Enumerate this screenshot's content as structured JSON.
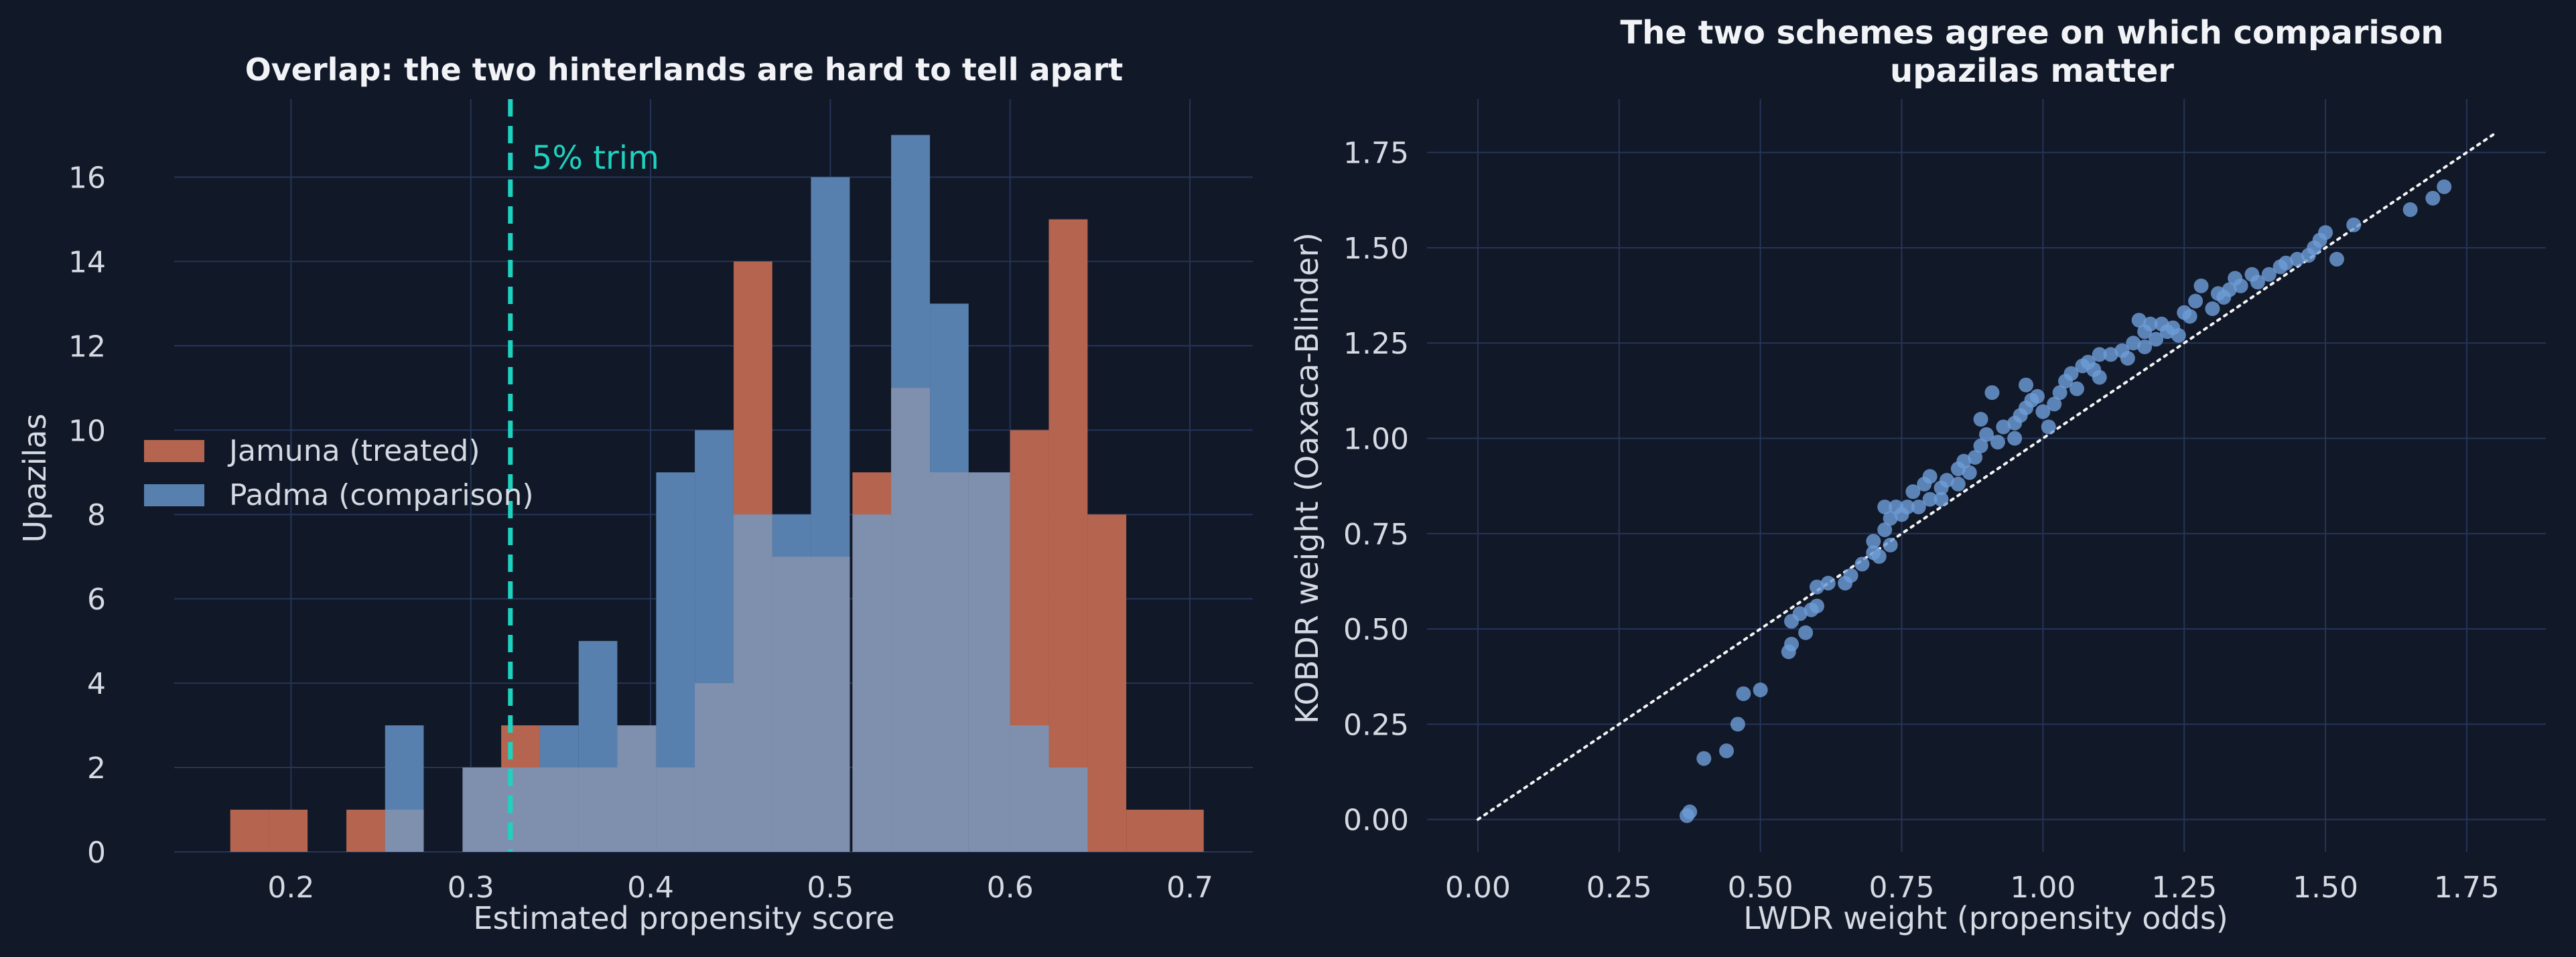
{
  "colors": {
    "background": "#111827",
    "grid": "#26345a",
    "text": "#d6dae3",
    "title": "#f1f3f7",
    "treated": "#b5654f",
    "comparison": "#5880ae",
    "overlap": "#7f90ae",
    "trim_line": "#1dd3c0",
    "scatter_point": "#6c9bd6",
    "identity_line": "#f3f4f6"
  },
  "chart_data": [
    {
      "type": "bar",
      "subtype": "overlaid-histogram",
      "title": "Overlap: the two hinterlands are hard to tell apart",
      "xlabel": "Estimated propensity score",
      "ylabel": "Upazilas",
      "xlim": [
        0.135,
        0.735
      ],
      "ylim": [
        0,
        17.85
      ],
      "xticks": [
        0.2,
        0.3,
        0.4,
        0.5,
        0.6,
        0.7
      ],
      "xtick_labels": [
        "0.2",
        "0.3",
        "0.4",
        "0.5",
        "0.6",
        "0.7"
      ],
      "yticks": [
        0,
        2,
        4,
        6,
        8,
        10,
        12,
        14,
        16
      ],
      "ytick_labels": [
        "0",
        "2",
        "4",
        "6",
        "8",
        "10",
        "12",
        "14",
        "16"
      ],
      "grid": true,
      "legend_position": "center-left",
      "series": [
        {
          "name": "Jamuna (treated)",
          "color_key": "treated",
          "bins": [
            [
              0.1662,
              0.1877,
              1
            ],
            [
              0.1877,
              0.2092,
              1
            ],
            [
              0.2308,
              0.2523,
              1
            ],
            [
              0.3169,
              0.3385,
              3
            ],
            [
              0.4031,
              0.4246,
              5
            ],
            [
              0.4462,
              0.4677,
              14
            ],
            [
              0.4892,
              0.5108,
              7
            ],
            [
              0.5123,
              0.5338,
              9
            ],
            [
              0.6,
              0.6215,
              10
            ],
            [
              0.6215,
              0.6431,
              15
            ],
            [
              0.6431,
              0.6646,
              8
            ],
            [
              0.6646,
              0.6862,
              1
            ],
            [
              0.6862,
              0.7077,
              1
            ]
          ]
        },
        {
          "name": "Padma (comparison)",
          "color_key": "comparison",
          "bins": [
            [
              0.2523,
              0.2738,
              3
            ],
            [
              0.3169,
              0.3385,
              2
            ],
            [
              0.3385,
              0.36,
              3
            ],
            [
              0.36,
              0.3815,
              5
            ],
            [
              0.4031,
              0.4246,
              9
            ],
            [
              0.4246,
              0.4462,
              10
            ],
            [
              0.4677,
              0.4892,
              8
            ],
            [
              0.4892,
              0.5108,
              16
            ],
            [
              0.5338,
              0.5554,
              17
            ],
            [
              0.5554,
              0.5769,
              13
            ],
            [
              0.6,
              0.6215,
              3
            ],
            [
              0.6215,
              0.6431,
              2
            ]
          ]
        },
        {
          "name": "",
          "color_key": "overlap",
          "bins": [
            [
              0.2523,
              0.2738,
              1
            ],
            [
              0.2954,
              0.3169,
              2
            ],
            [
              0.3169,
              0.3385,
              2
            ],
            [
              0.3385,
              0.36,
              2
            ],
            [
              0.36,
              0.3815,
              2
            ],
            [
              0.3815,
              0.4031,
              3
            ],
            [
              0.4031,
              0.4246,
              2
            ],
            [
              0.4246,
              0.4462,
              4
            ],
            [
              0.4462,
              0.4677,
              8
            ],
            [
              0.4677,
              0.4892,
              7
            ],
            [
              0.4892,
              0.5108,
              7
            ],
            [
              0.5123,
              0.5338,
              8
            ],
            [
              0.5338,
              0.5554,
              11
            ],
            [
              0.5554,
              0.5769,
              9
            ],
            [
              0.5769,
              0.6,
              9
            ],
            [
              0.6,
              0.6215,
              3
            ],
            [
              0.6215,
              0.6431,
              2
            ]
          ]
        }
      ],
      "annotations": [
        {
          "type": "vline",
          "x": 0.322,
          "label": "5% trim",
          "color_key": "trim_line"
        }
      ]
    },
    {
      "type": "scatter",
      "title": "The two schemes agree on which comparison upazilas matter",
      "title_lines": [
        "The two schemes agree on which comparison",
        "upazilas matter"
      ],
      "xlabel": "LWDR weight (propensity odds)",
      "ylabel": "KOBDR weight (Oaxaca-Blinder)",
      "xlim": [
        -0.09,
        1.89
      ],
      "ylim": [
        -0.085,
        1.89
      ],
      "xticks": [
        0,
        0.25,
        0.5,
        0.75,
        1.0,
        1.25,
        1.5,
        1.75
      ],
      "xtick_labels": [
        "0.00",
        "0.25",
        "0.50",
        "0.75",
        "1.00",
        "1.25",
        "1.50",
        "1.75"
      ],
      "yticks": [
        0,
        0.25,
        0.5,
        0.75,
        1.0,
        1.25,
        1.5,
        1.75
      ],
      "ytick_labels": [
        "0.00",
        "0.25",
        "0.50",
        "0.75",
        "1.00",
        "1.25",
        "1.50",
        "1.75"
      ],
      "grid": true,
      "reference_line": {
        "x": [
          0,
          1.8
        ],
        "y": [
          0,
          1.8
        ],
        "style": "dotted"
      },
      "points": [
        [
          0.37,
          0.01
        ],
        [
          0.375,
          0.02
        ],
        [
          0.4,
          0.16
        ],
        [
          0.44,
          0.18
        ],
        [
          0.46,
          0.25
        ],
        [
          0.47,
          0.33
        ],
        [
          0.5,
          0.34
        ],
        [
          0.55,
          0.44
        ],
        [
          0.555,
          0.46
        ],
        [
          0.58,
          0.49
        ],
        [
          0.555,
          0.52
        ],
        [
          0.57,
          0.54
        ],
        [
          0.59,
          0.55
        ],
        [
          0.6,
          0.56
        ],
        [
          0.6,
          0.61
        ],
        [
          0.62,
          0.62
        ],
        [
          0.65,
          0.62
        ],
        [
          0.66,
          0.64
        ],
        [
          0.68,
          0.67
        ],
        [
          0.7,
          0.7
        ],
        [
          0.71,
          0.69
        ],
        [
          0.7,
          0.73
        ],
        [
          0.72,
          0.76
        ],
        [
          0.73,
          0.79
        ],
        [
          0.74,
          0.82
        ],
        [
          0.72,
          0.82
        ],
        [
          0.75,
          0.8
        ],
        [
          0.76,
          0.82
        ],
        [
          0.78,
          0.82
        ],
        [
          0.77,
          0.86
        ],
        [
          0.79,
          0.88
        ],
        [
          0.8,
          0.9
        ],
        [
          0.8,
          0.84
        ],
        [
          0.82,
          0.87
        ],
        [
          0.83,
          0.89
        ],
        [
          0.85,
          0.88
        ],
        [
          0.85,
          0.92
        ],
        [
          0.86,
          0.94
        ],
        [
          0.87,
          0.91
        ],
        [
          0.88,
          0.95
        ],
        [
          0.89,
          0.98
        ],
        [
          0.9,
          1.01
        ],
        [
          0.89,
          1.05
        ],
        [
          0.92,
          0.99
        ],
        [
          0.93,
          1.03
        ],
        [
          0.95,
          1.04
        ],
        [
          0.96,
          1.06
        ],
        [
          0.97,
          1.08
        ],
        [
          0.98,
          1.1
        ],
        [
          0.97,
          1.14
        ],
        [
          0.99,
          1.11
        ],
        [
          1.0,
          1.07
        ],
        [
          1.01,
          1.03
        ],
        [
          1.02,
          1.09
        ],
        [
          1.03,
          1.12
        ],
        [
          1.04,
          1.15
        ],
        [
          1.05,
          1.17
        ],
        [
          1.06,
          1.13
        ],
        [
          1.07,
          1.19
        ],
        [
          1.08,
          1.2
        ],
        [
          1.09,
          1.18
        ],
        [
          1.1,
          1.16
        ],
        [
          1.12,
          1.22
        ],
        [
          1.14,
          1.23
        ],
        [
          1.15,
          1.21
        ],
        [
          1.16,
          1.25
        ],
        [
          1.17,
          1.31
        ],
        [
          1.18,
          1.28
        ],
        [
          1.19,
          1.3
        ],
        [
          1.2,
          1.26
        ],
        [
          1.21,
          1.3
        ],
        [
          1.22,
          1.28
        ],
        [
          1.23,
          1.29
        ],
        [
          1.24,
          1.27
        ],
        [
          1.26,
          1.32
        ],
        [
          1.27,
          1.36
        ],
        [
          1.28,
          1.4
        ],
        [
          1.3,
          1.34
        ],
        [
          1.31,
          1.38
        ],
        [
          1.32,
          1.37
        ],
        [
          1.33,
          1.39
        ],
        [
          1.34,
          1.42
        ],
        [
          1.35,
          1.4
        ],
        [
          1.37,
          1.43
        ],
        [
          1.38,
          1.41
        ],
        [
          1.4,
          1.43
        ],
        [
          1.42,
          1.45
        ],
        [
          1.43,
          1.46
        ],
        [
          1.45,
          1.47
        ],
        [
          1.47,
          1.48
        ],
        [
          1.48,
          1.5
        ],
        [
          1.49,
          1.52
        ],
        [
          1.5,
          1.54
        ],
        [
          1.52,
          1.47
        ],
        [
          1.55,
          1.56
        ],
        [
          1.65,
          1.6
        ],
        [
          1.69,
          1.63
        ],
        [
          1.71,
          1.66
        ],
        [
          1.18,
          1.24
        ],
        [
          0.91,
          1.12
        ],
        [
          0.95,
          1.0
        ],
        [
          1.25,
          1.33
        ],
        [
          0.82,
          0.84
        ],
        [
          1.1,
          1.22
        ],
        [
          0.73,
          0.72
        ]
      ]
    }
  ]
}
